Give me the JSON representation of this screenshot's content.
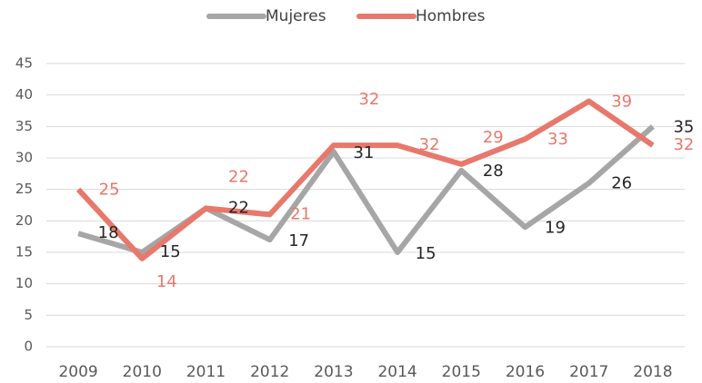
{
  "chart_data": {
    "type": "line",
    "categories": [
      "2009",
      "2010",
      "2011",
      "2012",
      "2013",
      "2014",
      "2015",
      "2016",
      "2017",
      "2018"
    ],
    "series": [
      {
        "name": "Mujeres",
        "color": "#a6a6a6",
        "values": [
          18,
          15,
          22,
          17,
          31,
          15,
          28,
          19,
          26,
          35
        ]
      },
      {
        "name": "Hombres",
        "color": "#e8786c",
        "values": [
          25,
          14,
          22,
          21,
          32,
          32,
          29,
          33,
          39,
          32
        ]
      }
    ],
    "ylim": [
      0,
      45
    ],
    "yticks": [
      0,
      5,
      10,
      15,
      20,
      25,
      30,
      35,
      40,
      45
    ],
    "grid": true,
    "legend": "top"
  }
}
